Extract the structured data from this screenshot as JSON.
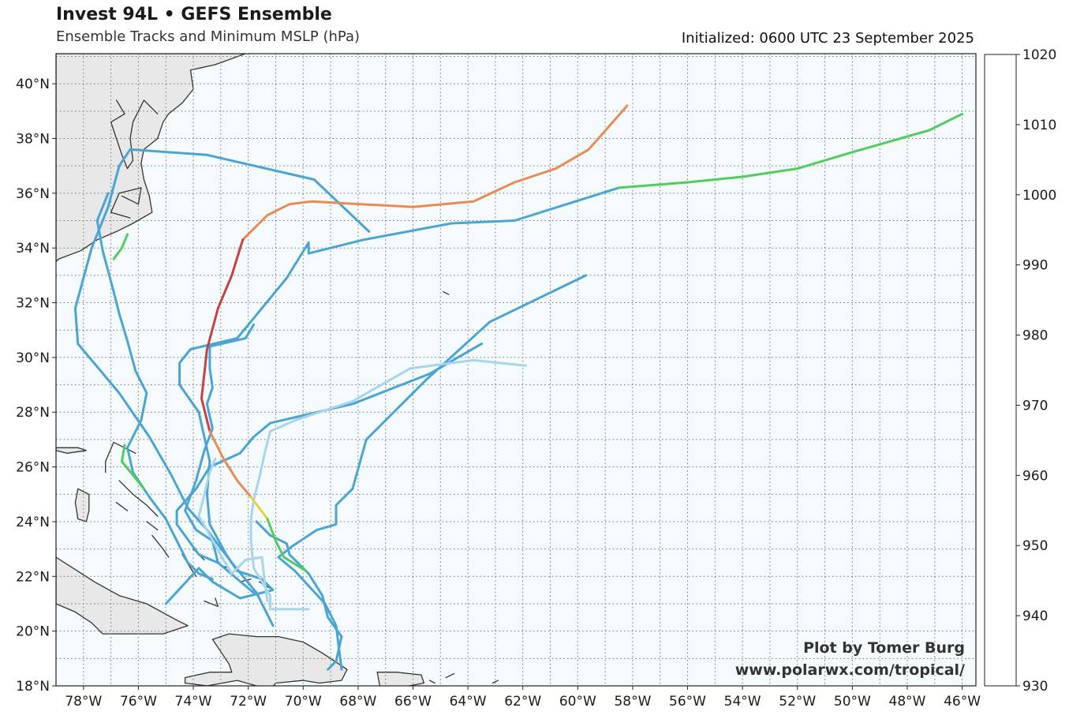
{
  "header": {
    "title": "Invest 94L • GEFS Ensemble",
    "subtitle": "Ensemble Tracks and Minimum MSLP (hPa)",
    "initialized": "Initialized: 0600 UTC 23 September 2025"
  },
  "credit": {
    "line1": "Plot by Tomer Burg",
    "line2": "www.polarwx.com/tropical/"
  },
  "map": {
    "lon_range": [
      -79,
      -45.5
    ],
    "lat_range": [
      18,
      41.1
    ],
    "ocean_color": "#f5fbfd",
    "land_color": "#e8e8e8",
    "coast_color": "#333333",
    "lat_ticks": [
      "18°N",
      "20°N",
      "22°N",
      "24°N",
      "26°N",
      "28°N",
      "30°N",
      "32°N",
      "34°N",
      "36°N",
      "38°N",
      "40°N"
    ],
    "lon_ticks": [
      "78°W",
      "76°W",
      "74°W",
      "72°W",
      "70°W",
      "68°W",
      "66°W",
      "64°W",
      "62°W",
      "60°W",
      "58°W",
      "56°W",
      "54°W",
      "52°W",
      "50°W",
      "48°W",
      "46°W"
    ]
  },
  "colorbar": {
    "levels": [
      "930",
      "940",
      "950",
      "960",
      "970",
      "980",
      "990",
      "1000",
      "1010",
      "1020"
    ],
    "colors": [
      "#ebaae8",
      "#cc52cc",
      "#8e1f1f",
      "#c94040",
      "#e88c57",
      "#e6d144",
      "#52cc5e",
      "#4aa5d3",
      "#a8d4ed"
    ]
  },
  "legend_hpa": {
    "c1010": "#4aa5d3",
    "c1020": "#a8d4ed",
    "c1000": "#52cc5e",
    "c990": "#e6d144",
    "c980": "#e88c57",
    "c970": "#c94040"
  },
  "tracks": [
    {
      "color": "#4aa5d3",
      "points": [
        [
          -67.6,
          34.6
        ],
        [
          -69.6,
          36.5
        ],
        [
          -73.5,
          37.4
        ],
        [
          -76.3,
          37.6
        ],
        [
          -76.7,
          37
        ],
        [
          -77.1,
          35.5
        ],
        [
          -77.7,
          34
        ],
        [
          -78.3,
          31.8
        ],
        [
          -78.2,
          30.5
        ],
        [
          -76.7,
          28.7
        ],
        [
          -75.6,
          27.1
        ],
        [
          -74.8,
          25.7
        ],
        [
          -74.2,
          24.5
        ],
        [
          -73.5,
          23.7
        ],
        [
          -72.6,
          22.5
        ],
        [
          -71.7,
          21.4
        ],
        [
          -71.1,
          20.2
        ]
      ]
    },
    {
      "color": "#4aa5d3",
      "points": [
        [
          -59.7,
          33
        ],
        [
          -63.2,
          31.3
        ],
        [
          -65.5,
          29.2
        ],
        [
          -67.7,
          27
        ],
        [
          -68.2,
          25.2
        ],
        [
          -68.8,
          24.6
        ],
        [
          -68.8,
          23.9
        ],
        [
          -69.5,
          23.7
        ],
        [
          -70.4,
          23.1
        ],
        [
          -70.9,
          22.7
        ],
        [
          -70.3,
          22.2
        ],
        [
          -69.2,
          21
        ],
        [
          -68.8,
          20.2
        ],
        [
          -68.6,
          18.6
        ]
      ]
    },
    {
      "color": "#4aa5d3",
      "points": [
        [
          -58.5,
          36.2
        ],
        [
          -62.3,
          35
        ],
        [
          -64.6,
          34.9
        ],
        [
          -67.8,
          34.3
        ],
        [
          -69.8,
          33.8
        ],
        [
          -69.8,
          34.2
        ],
        [
          -70.6,
          32.9
        ],
        [
          -72.4,
          30.7
        ],
        [
          -74.1,
          30.3
        ],
        [
          -74.5,
          29.8
        ],
        [
          -74.5,
          29
        ],
        [
          -73.8,
          28
        ],
        [
          -73.4,
          26.2
        ],
        [
          -73.5,
          25
        ],
        [
          -73.4,
          23.9
        ],
        [
          -72.8,
          22.8
        ],
        [
          -72.4,
          22.2
        ],
        [
          -71.5,
          21.9
        ],
        [
          -71.1,
          21.5
        ],
        [
          -72.3,
          21.2
        ],
        [
          -73.3,
          21.8
        ],
        [
          -73.8,
          22.3
        ],
        [
          -75,
          21
        ]
      ]
    },
    {
      "color": "#4aa5d3",
      "points": [
        [
          -71.8,
          31.2
        ],
        [
          -72.1,
          30.7
        ],
        [
          -73.4,
          30.4
        ],
        [
          -73.4,
          29.6
        ],
        [
          -73.3,
          28.9
        ],
        [
          -73.5,
          28.3
        ],
        [
          -73.3,
          27.4
        ],
        [
          -73.6,
          26.6
        ],
        [
          -73.9,
          25.5
        ],
        [
          -74.3,
          24.4
        ],
        [
          -73.9,
          23.7
        ],
        [
          -73.3,
          23.3
        ],
        [
          -73.1,
          22.5
        ],
        [
          -71.8,
          21.4
        ]
      ]
    },
    {
      "color": "#4aa5d3",
      "points": [
        [
          -63.5,
          30.5
        ],
        [
          -65.4,
          29.4
        ],
        [
          -68.2,
          28.3
        ],
        [
          -71.2,
          27.6
        ],
        [
          -71.8,
          27.1
        ],
        [
          -72.3,
          26.5
        ],
        [
          -73.4,
          26
        ],
        [
          -73.9,
          25.2
        ],
        [
          -74.6,
          24.4
        ],
        [
          -74.6,
          23.9
        ],
        [
          -73.8,
          22.8
        ],
        [
          -73.1,
          22.5
        ]
      ]
    },
    {
      "color": "#4aa5d3",
      "points": [
        [
          -71.7,
          24
        ],
        [
          -71.2,
          23.5
        ],
        [
          -70.6,
          23.2
        ],
        [
          -70.5,
          22.8
        ],
        [
          -69.8,
          22.1
        ],
        [
          -69.3,
          21.3
        ],
        [
          -69.1,
          20.5
        ],
        [
          -68.6,
          19.8
        ],
        [
          -68.8,
          18.9
        ],
        [
          -69.1,
          18.6
        ]
      ]
    },
    {
      "color": "#a8d4ed",
      "points": [
        [
          -61.9,
          29.7
        ],
        [
          -63.8,
          29.9
        ],
        [
          -66.1,
          29.6
        ],
        [
          -68.2,
          28.4
        ],
        [
          -70.3,
          27.7
        ],
        [
          -71.2,
          27.3
        ],
        [
          -71.4,
          26.5
        ],
        [
          -71.6,
          25.6
        ],
        [
          -71.8,
          24.8
        ],
        [
          -71.9,
          24.1
        ],
        [
          -71.9,
          23.3
        ],
        [
          -71.8,
          22.3
        ],
        [
          -71.2,
          21.3
        ],
        [
          -71.2,
          20.8
        ],
        [
          -69.8,
          20.8
        ]
      ]
    },
    {
      "color": "#a8d4ed",
      "points": [
        [
          -73.2,
          26.3
        ],
        [
          -73.4,
          25.8
        ],
        [
          -73.6,
          25
        ],
        [
          -73.8,
          24.2
        ],
        [
          -73.4,
          23.5
        ],
        [
          -72.9,
          22.6
        ],
        [
          -72.6,
          22.1
        ],
        [
          -72.1,
          22.6
        ],
        [
          -71.5,
          22.7
        ],
        [
          -71.4,
          21.8
        ],
        [
          -71.3,
          21.1
        ]
      ]
    },
    {
      "color": "#4aa5d3",
      "points": [
        [
          -77.1,
          36
        ],
        [
          -77.5,
          35
        ],
        [
          -77.3,
          33.9
        ],
        [
          -76.9,
          32.4
        ],
        [
          -76.7,
          31.6
        ],
        [
          -76.4,
          30.6
        ],
        [
          -76.1,
          29.5
        ],
        [
          -75.7,
          28.7
        ],
        [
          -75.9,
          27.7
        ],
        [
          -76.4,
          26.7
        ],
        [
          -76.2,
          25.8
        ],
        [
          -75.6,
          24.9
        ],
        [
          -75,
          24.1
        ],
        [
          -74.6,
          23.3
        ],
        [
          -74.2,
          22.5
        ],
        [
          -73.8,
          22.1
        ],
        [
          -73.3,
          21.9
        ]
      ]
    },
    {
      "color": "#52cc5e",
      "points": [
        [
          -76.4,
          34.5
        ],
        [
          -76.6,
          34
        ],
        [
          -76.9,
          33.6
        ]
      ]
    },
    {
      "color": "#52cc5e",
      "points": [
        [
          -76.5,
          26.8
        ],
        [
          -76.6,
          26.2
        ],
        [
          -76.2,
          25.7
        ],
        [
          -75.8,
          25.2
        ]
      ]
    },
    {
      "color": "#52cc5e",
      "points": [
        [
          -46,
          38.9
        ],
        [
          -47.2,
          38.3
        ],
        [
          -50,
          37.5
        ],
        [
          -52,
          36.9
        ],
        [
          -54,
          36.6
        ],
        [
          -56,
          36.4
        ],
        [
          -58.5,
          36.2
        ]
      ]
    },
    {
      "color": "#e88c57",
      "points": [
        [
          -58.2,
          39.2
        ],
        [
          -59.6,
          37.6
        ],
        [
          -60.8,
          36.9
        ],
        [
          -62.3,
          36.4
        ],
        [
          -63.8,
          35.7
        ],
        [
          -66,
          35.5
        ],
        [
          -67.9,
          35.6
        ],
        [
          -69.7,
          35.7
        ],
        [
          -70.5,
          35.6
        ],
        [
          -71.3,
          35.2
        ],
        [
          -72.2,
          34.3
        ]
      ]
    },
    {
      "color": "#c94040",
      "points": [
        [
          -72.2,
          34.3
        ],
        [
          -72.6,
          33
        ],
        [
          -73.1,
          31.8
        ],
        [
          -73.5,
          30.3
        ],
        [
          -73.7,
          28.5
        ],
        [
          -73.4,
          27.3
        ]
      ]
    },
    {
      "color": "#e88c57",
      "points": [
        [
          -73.4,
          27.3
        ],
        [
          -72.9,
          26.3
        ],
        [
          -72.4,
          25.5
        ],
        [
          -71.9,
          24.9
        ]
      ]
    },
    {
      "color": "#e6d144",
      "points": [
        [
          -71.9,
          24.9
        ],
        [
          -71.3,
          24.1
        ]
      ]
    },
    {
      "color": "#52cc5e",
      "points": [
        [
          -71.3,
          24.1
        ],
        [
          -71.0,
          23.3
        ],
        [
          -70.7,
          22.7
        ],
        [
          -69.9,
          22.2
        ]
      ]
    }
  ],
  "land": [
    {
      "name": "us-east",
      "points": [
        [
          -79,
          41.1
        ],
        [
          -72.1,
          41.1
        ],
        [
          -73.2,
          40.7
        ],
        [
          -74.1,
          40.5
        ],
        [
          -74.0,
          39.8
        ],
        [
          -74.4,
          39.3
        ],
        [
          -74.9,
          38.9
        ],
        [
          -75.1,
          38.6
        ],
        [
          -75.3,
          38.0
        ],
        [
          -75.8,
          37.6
        ],
        [
          -75.9,
          37.1
        ],
        [
          -75.8,
          36.5
        ],
        [
          -75.6,
          35.9
        ],
        [
          -75.5,
          35.3
        ],
        [
          -76.2,
          34.9
        ],
        [
          -76.8,
          34.6
        ],
        [
          -77.5,
          34.3
        ],
        [
          -78.1,
          33.9
        ],
        [
          -78.9,
          33.6
        ],
        [
          -79,
          33.5
        ]
      ]
    },
    {
      "name": "cuba",
      "points": [
        [
          -79,
          22.7
        ],
        [
          -77.6,
          21.8
        ],
        [
          -76.7,
          21.3
        ],
        [
          -75.7,
          21.0
        ],
        [
          -74.6,
          20.4
        ],
        [
          -74.2,
          20.2
        ],
        [
          -75.1,
          19.9
        ],
        [
          -76.3,
          19.9
        ],
        [
          -77.3,
          19.9
        ],
        [
          -77.7,
          20.3
        ],
        [
          -78.3,
          20.7
        ],
        [
          -79,
          21.0
        ]
      ]
    },
    {
      "name": "hispaniola",
      "points": [
        [
          -74.3,
          18.3
        ],
        [
          -73.4,
          18.5
        ],
        [
          -72.6,
          18.5
        ],
        [
          -72.7,
          18.8
        ],
        [
          -73.3,
          19.7
        ],
        [
          -72.7,
          19.9
        ],
        [
          -71.7,
          19.8
        ],
        [
          -70.9,
          19.8
        ],
        [
          -70.0,
          19.6
        ],
        [
          -69.3,
          19.2
        ],
        [
          -68.4,
          18.6
        ],
        [
          -68.6,
          18.2
        ],
        [
          -69.4,
          18.1
        ],
        [
          -70.0,
          18.2
        ],
        [
          -71.0,
          18.1
        ],
        [
          -71.4,
          17.6
        ],
        [
          -71.7,
          18.0
        ],
        [
          -72.4,
          18.2
        ],
        [
          -73.5,
          18.0
        ],
        [
          -74.3,
          18.1
        ]
      ]
    },
    {
      "name": "puerto-rico",
      "points": [
        [
          -67.3,
          18.5
        ],
        [
          -66.6,
          18.5
        ],
        [
          -65.7,
          18.4
        ],
        [
          -65.6,
          18.1
        ],
        [
          -66.4,
          17.95
        ],
        [
          -67.2,
          17.95
        ]
      ]
    },
    {
      "name": "andros",
      "points": [
        [
          -78.2,
          25.2
        ],
        [
          -77.8,
          25.0
        ],
        [
          -77.8,
          24.4
        ],
        [
          -77.9,
          24.0
        ],
        [
          -78.2,
          24.1
        ],
        [
          -78.3,
          24.7
        ]
      ]
    },
    {
      "name": "grand-bahama",
      "points": [
        [
          -79,
          26.7
        ],
        [
          -78.2,
          26.7
        ],
        [
          -77.9,
          26.6
        ],
        [
          -78.6,
          26.5
        ],
        [
          -79,
          26.6
        ]
      ]
    }
  ],
  "coast_lines": [
    [
      [
        -75.3,
        38.9
      ],
      [
        -75.8,
        39.4
      ],
      [
        -76.2,
        38.6
      ],
      [
        -76.3,
        38.0
      ],
      [
        -76.2,
        37.2
      ],
      [
        -76.4,
        36.9
      ],
      [
        -76.6,
        37.4
      ],
      [
        -77.0,
        38.6
      ],
      [
        -76.5,
        38.9
      ],
      [
        -76.8,
        39.4
      ]
    ],
    [
      [
        -76.6,
        35.9
      ],
      [
        -76.0,
        35.6
      ],
      [
        -75.9,
        36.2
      ],
      [
        -76.7,
        36.0
      ],
      [
        -77.0,
        35.3
      ],
      [
        -76.3,
        35.1
      ]
    ],
    [
      [
        -76.1,
        26.5
      ],
      [
        -76.9,
        26.9
      ],
      [
        -77.2,
        26.2
      ],
      [
        -77.2,
        25.8
      ]
    ],
    [
      [
        -76.7,
        25.5
      ],
      [
        -76.2,
        25.0
      ],
      [
        -75.7,
        24.6
      ],
      [
        -75.3,
        24.2
      ]
    ],
    [
      [
        -74.4,
        22.8
      ],
      [
        -74.1,
        22.3
      ],
      [
        -73.9,
        22.0
      ]
    ],
    [
      [
        -75.5,
        23.5
      ],
      [
        -75.1,
        23.0
      ],
      [
        -74.9,
        22.7
      ]
    ],
    [
      [
        -71.6,
        21.8
      ],
      [
        -71.1,
        21.5
      ]
    ],
    [
      [
        -72.3,
        21.8
      ],
      [
        -71.9,
        21.9
      ]
    ],
    [
      [
        -73.6,
        21.1
      ],
      [
        -73.1,
        20.9
      ],
      [
        -73.2,
        21.2
      ]
    ],
    [
      [
        -74.0,
        23.0
      ],
      [
        -73.6,
        22.6
      ]
    ],
    [
      [
        -73.0,
        22.4
      ],
      [
        -72.7,
        22.3
      ]
    ],
    [
      [
        -75.7,
        24.0
      ],
      [
        -75.3,
        23.7
      ]
    ],
    [
      [
        -76.8,
        24.7
      ],
      [
        -76.4,
        24.4
      ]
    ],
    [
      [
        -64.9,
        32.4
      ],
      [
        -64.7,
        32.3
      ]
    ],
    [
      [
        -64.8,
        18.3
      ],
      [
        -64.5,
        18.45
      ]
    ],
    [
      [
        -63.1,
        18.1
      ],
      [
        -62.9,
        18.2
      ]
    ],
    [
      [
        -65.4,
        18.2
      ],
      [
        -65.2,
        18.1
      ]
    ]
  ]
}
